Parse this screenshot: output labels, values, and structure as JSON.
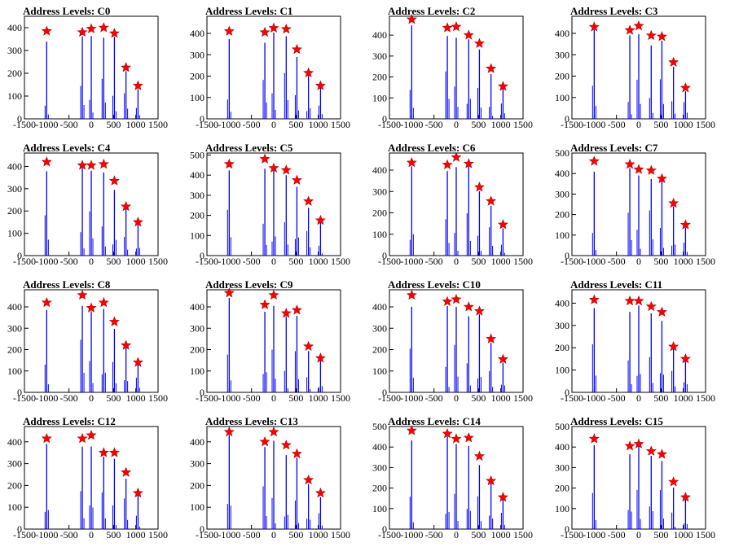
{
  "chart_data": [
    {
      "type": "bar",
      "title": "Address Levels: C0",
      "xlim": [
        -1500,
        1500
      ],
      "ylim": [
        0,
        450
      ],
      "yticks": [
        0,
        100,
        200,
        300,
        400
      ],
      "xticks": [
        -1500,
        -1000,
        -500,
        0,
        500,
        1000,
        1500
      ],
      "tick_labels_x": [
        "-1500",
        "-1000",
        "-500",
        "0",
        "500",
        "1000",
        "1500"
      ],
      "tick_labels_y": [
        "0",
        "100",
        "200",
        "300",
        "400"
      ],
      "peaks": [
        {
          "x": -1000,
          "y": 385
        },
        {
          "x": -200,
          "y": 380
        },
        {
          "x": 0,
          "y": 395
        },
        {
          "x": 280,
          "y": 400
        },
        {
          "x": 520,
          "y": 375
        },
        {
          "x": 780,
          "y": 225
        },
        {
          "x": 1050,
          "y": 145
        }
      ]
    },
    {
      "type": "bar",
      "title": "Address Levels: C1",
      "xlim": [
        -1500,
        1500
      ],
      "ylim": [
        0,
        480
      ],
      "yticks": [
        0,
        100,
        200,
        300,
        400
      ],
      "xticks": [
        -1500,
        -1000,
        -500,
        0,
        500,
        1000,
        1500
      ],
      "tick_labels_x": [
        "-1500",
        "-1000",
        "-500",
        "0",
        "500",
        "1000",
        "1500"
      ],
      "tick_labels_y": [
        "0",
        "100",
        "200",
        "300",
        "400"
      ],
      "peaks": [
        {
          "x": -1000,
          "y": 410
        },
        {
          "x": -200,
          "y": 405
        },
        {
          "x": 0,
          "y": 425
        },
        {
          "x": 280,
          "y": 420
        },
        {
          "x": 520,
          "y": 325
        },
        {
          "x": 780,
          "y": 215
        },
        {
          "x": 1050,
          "y": 155
        }
      ]
    },
    {
      "type": "bar",
      "title": "Address Levels: C2",
      "xlim": [
        -1500,
        1500
      ],
      "ylim": [
        0,
        490
      ],
      "yticks": [
        0,
        100,
        200,
        300,
        400
      ],
      "xticks": [
        -1500,
        -1000,
        -500,
        0,
        500,
        1000,
        1500
      ],
      "tick_labels_x": [
        "-1500",
        "-1000",
        "-500",
        "0",
        "500",
        "1000",
        "1500"
      ],
      "tick_labels_y": [
        "0",
        "100",
        "200",
        "300",
        "400"
      ],
      "peaks": [
        {
          "x": -1000,
          "y": 475
        },
        {
          "x": -200,
          "y": 435
        },
        {
          "x": 0,
          "y": 440
        },
        {
          "x": 280,
          "y": 400
        },
        {
          "x": 520,
          "y": 360
        },
        {
          "x": 780,
          "y": 240
        },
        {
          "x": 1050,
          "y": 155
        }
      ]
    },
    {
      "type": "bar",
      "title": "Address Levels: C3",
      "xlim": [
        -1500,
        1500
      ],
      "ylim": [
        0,
        480
      ],
      "yticks": [
        0,
        100,
        200,
        300,
        400
      ],
      "xticks": [
        -1500,
        -1000,
        -500,
        0,
        500,
        1000,
        1500
      ],
      "tick_labels_x": [
        "-1500",
        "-1000",
        "-500",
        "0",
        "500",
        "1000",
        "1500"
      ],
      "tick_labels_y": [
        "0",
        "100",
        "200",
        "300",
        "400"
      ],
      "peaks": [
        {
          "x": -1000,
          "y": 430
        },
        {
          "x": -200,
          "y": 415
        },
        {
          "x": 0,
          "y": 435
        },
        {
          "x": 280,
          "y": 390
        },
        {
          "x": 520,
          "y": 385
        },
        {
          "x": 780,
          "y": 265
        },
        {
          "x": 1050,
          "y": 145
        }
      ]
    },
    {
      "type": "bar",
      "title": "Address Levels: C4",
      "xlim": [
        -1500,
        1500
      ],
      "ylim": [
        0,
        460
      ],
      "yticks": [
        0,
        100,
        200,
        300,
        400
      ],
      "xticks": [
        -1500,
        -1000,
        -500,
        0,
        500,
        1000,
        1500
      ],
      "tick_labels_x": [
        "-1500",
        "-1000",
        "-500",
        "0",
        "500",
        "1000",
        "1500"
      ],
      "tick_labels_y": [
        "0",
        "100",
        "200",
        "300",
        "400"
      ],
      "peaks": [
        {
          "x": -1000,
          "y": 420
        },
        {
          "x": -200,
          "y": 405
        },
        {
          "x": 0,
          "y": 405
        },
        {
          "x": 280,
          "y": 410
        },
        {
          "x": 520,
          "y": 335
        },
        {
          "x": 780,
          "y": 220
        },
        {
          "x": 1050,
          "y": 150
        }
      ]
    },
    {
      "type": "bar",
      "title": "Address Levels: C5",
      "xlim": [
        -1500,
        1500
      ],
      "ylim": [
        0,
        510
      ],
      "yticks": [
        0,
        100,
        200,
        300,
        400,
        500
      ],
      "xticks": [
        -1500,
        -1000,
        -500,
        0,
        500,
        1000,
        1500
      ],
      "tick_labels_x": [
        "-1500",
        "-1000",
        "-500",
        "0",
        "500",
        "1000",
        "1500"
      ],
      "tick_labels_y": [
        "0",
        "100",
        "200",
        "300",
        "400",
        "500"
      ],
      "peaks": [
        {
          "x": -1000,
          "y": 455
        },
        {
          "x": -200,
          "y": 480
        },
        {
          "x": 0,
          "y": 435
        },
        {
          "x": 280,
          "y": 425
        },
        {
          "x": 520,
          "y": 375
        },
        {
          "x": 780,
          "y": 270
        },
        {
          "x": 1050,
          "y": 175
        }
      ]
    },
    {
      "type": "bar",
      "title": "Address Levels: C6",
      "xlim": [
        -1500,
        1500
      ],
      "ylim": [
        0,
        480
      ],
      "yticks": [
        0,
        100,
        200,
        300,
        400
      ],
      "xticks": [
        -1500,
        -1000,
        -500,
        0,
        500,
        1000,
        1500
      ],
      "tick_labels_x": [
        "-1500",
        "-1000",
        "-500",
        "0",
        "500",
        "1000",
        "1500"
      ],
      "tick_labels_y": [
        "0",
        "100",
        "200",
        "300",
        "400"
      ],
      "peaks": [
        {
          "x": -1000,
          "y": 435
        },
        {
          "x": -200,
          "y": 425
        },
        {
          "x": 0,
          "y": 460
        },
        {
          "x": 280,
          "y": 430
        },
        {
          "x": 520,
          "y": 320
        },
        {
          "x": 780,
          "y": 255
        },
        {
          "x": 1050,
          "y": 145
        }
      ]
    },
    {
      "type": "bar",
      "title": "Address Levels: C7",
      "xlim": [
        -1500,
        1500
      ],
      "ylim": [
        0,
        500
      ],
      "yticks": [
        0,
        100,
        200,
        300,
        400,
        500
      ],
      "xticks": [
        -1500,
        -1000,
        -500,
        0,
        500,
        1000,
        1500
      ],
      "tick_labels_x": [
        "-1500",
        "-1000",
        "-500",
        "0",
        "500",
        "1000",
        "1500"
      ],
      "tick_labels_y": [
        "0",
        "100",
        "200",
        "300",
        "400",
        "500"
      ],
      "peaks": [
        {
          "x": -1000,
          "y": 460
        },
        {
          "x": -200,
          "y": 445
        },
        {
          "x": 0,
          "y": 420
        },
        {
          "x": 280,
          "y": 415
        },
        {
          "x": 520,
          "y": 375
        },
        {
          "x": 780,
          "y": 255
        },
        {
          "x": 1050,
          "y": 150
        }
      ]
    },
    {
      "type": "bar",
      "title": "Address Levels: C8",
      "xlim": [
        -1500,
        1500
      ],
      "ylim": [
        0,
        480
      ],
      "yticks": [
        0,
        100,
        200,
        300,
        400
      ],
      "xticks": [
        -1500,
        -1000,
        -500,
        0,
        500,
        1000,
        1500
      ],
      "tick_labels_x": [
        "-1500",
        "-1000",
        "-500",
        "0",
        "500",
        "1000",
        "1500"
      ],
      "tick_labels_y": [
        "0",
        "100",
        "200",
        "300",
        "400"
      ],
      "peaks": [
        {
          "x": -1000,
          "y": 420
        },
        {
          "x": -200,
          "y": 455
        },
        {
          "x": 0,
          "y": 395
        },
        {
          "x": 280,
          "y": 420
        },
        {
          "x": 520,
          "y": 330
        },
        {
          "x": 780,
          "y": 220
        },
        {
          "x": 1050,
          "y": 140
        }
      ]
    },
    {
      "type": "bar",
      "title": "Address Levels: C9",
      "xlim": [
        -1500,
        1500
      ],
      "ylim": [
        0,
        480
      ],
      "yticks": [
        0,
        100,
        200,
        300,
        400
      ],
      "xticks": [
        -1500,
        -1000,
        -500,
        0,
        500,
        1000,
        1500
      ],
      "tick_labels_x": [
        "-1500",
        "-1000",
        "-500",
        "0",
        "500",
        "1000",
        "1500"
      ],
      "tick_labels_y": [
        "0",
        "100",
        "200",
        "300",
        "400"
      ],
      "peaks": [
        {
          "x": -1000,
          "y": 465
        },
        {
          "x": -200,
          "y": 410
        },
        {
          "x": 0,
          "y": 455
        },
        {
          "x": 280,
          "y": 370
        },
        {
          "x": 520,
          "y": 385
        },
        {
          "x": 780,
          "y": 215
        },
        {
          "x": 1050,
          "y": 160
        }
      ]
    },
    {
      "type": "bar",
      "title": "Address Levels: C10",
      "xlim": [
        -1500,
        1500
      ],
      "ylim": [
        0,
        480
      ],
      "yticks": [
        0,
        100,
        200,
        300,
        400
      ],
      "xticks": [
        -1500,
        -1000,
        -500,
        0,
        500,
        1000,
        1500
      ],
      "tick_labels_x": [
        "-1500",
        "-1000",
        "-500",
        "0",
        "500",
        "1000",
        "1500"
      ],
      "tick_labels_y": [
        "0",
        "100",
        "200",
        "300",
        "400"
      ],
      "peaks": [
        {
          "x": -1000,
          "y": 455
        },
        {
          "x": -200,
          "y": 425
        },
        {
          "x": 0,
          "y": 435
        },
        {
          "x": 280,
          "y": 400
        },
        {
          "x": 520,
          "y": 380
        },
        {
          "x": 780,
          "y": 250
        },
        {
          "x": 1050,
          "y": 155
        }
      ]
    },
    {
      "type": "bar",
      "title": "Address Levels: C11",
      "xlim": [
        -1500,
        1500
      ],
      "ylim": [
        0,
        460
      ],
      "yticks": [
        0,
        100,
        200,
        300,
        400
      ],
      "xticks": [
        -1500,
        -1000,
        -500,
        0,
        500,
        1000,
        1500
      ],
      "tick_labels_x": [
        "-1500",
        "-1000",
        "-500",
        "0",
        "500",
        "1000",
        "1500"
      ],
      "tick_labels_y": [
        "0",
        "100",
        "200",
        "300",
        "400"
      ],
      "peaks": [
        {
          "x": -1000,
          "y": 415
        },
        {
          "x": -200,
          "y": 410
        },
        {
          "x": 0,
          "y": 410
        },
        {
          "x": 280,
          "y": 385
        },
        {
          "x": 520,
          "y": 360
        },
        {
          "x": 780,
          "y": 205
        },
        {
          "x": 1050,
          "y": 150
        }
      ]
    },
    {
      "type": "bar",
      "title": "Address Levels: C12",
      "xlim": [
        -1500,
        1500
      ],
      "ylim": [
        0,
        470
      ],
      "yticks": [
        0,
        100,
        200,
        300,
        400
      ],
      "xticks": [
        -1500,
        -1000,
        -500,
        0,
        500,
        1000,
        1500
      ],
      "tick_labels_x": [
        "-1500",
        "-1000",
        "-500",
        "0",
        "500",
        "1000",
        "1500"
      ],
      "tick_labels_y": [
        "0",
        "100",
        "200",
        "300",
        "400"
      ],
      "peaks": [
        {
          "x": -1000,
          "y": 415
        },
        {
          "x": -200,
          "y": 415
        },
        {
          "x": 0,
          "y": 430
        },
        {
          "x": 280,
          "y": 350
        },
        {
          "x": 520,
          "y": 350
        },
        {
          "x": 780,
          "y": 260
        },
        {
          "x": 1050,
          "y": 165
        }
      ]
    },
    {
      "type": "bar",
      "title": "Address Levels: C13",
      "xlim": [
        -1500,
        1500
      ],
      "ylim": [
        0,
        470
      ],
      "yticks": [
        0,
        100,
        200,
        300,
        400
      ],
      "xticks": [
        -1500,
        -1000,
        -500,
        0,
        500,
        1000,
        1500
      ],
      "tick_labels_x": [
        "-1500",
        "-1000",
        "-500",
        "0",
        "500",
        "1000",
        "1500"
      ],
      "tick_labels_y": [
        "0",
        "100",
        "200",
        "300",
        "400"
      ],
      "peaks": [
        {
          "x": -1000,
          "y": 445
        },
        {
          "x": -200,
          "y": 400
        },
        {
          "x": 0,
          "y": 445
        },
        {
          "x": 280,
          "y": 385
        },
        {
          "x": 520,
          "y": 345
        },
        {
          "x": 780,
          "y": 225
        },
        {
          "x": 1050,
          "y": 165
        }
      ]
    },
    {
      "type": "bar",
      "title": "Address Levels: C14",
      "xlim": [
        -1500,
        1500
      ],
      "ylim": [
        0,
        500
      ],
      "yticks": [
        0,
        100,
        200,
        300,
        400,
        500
      ],
      "xticks": [
        -1500,
        -1000,
        -500,
        0,
        500,
        1000,
        1500
      ],
      "tick_labels_x": [
        "-1500",
        "-1000",
        "-500",
        "0",
        "500",
        "1000",
        "1500"
      ],
      "tick_labels_y": [
        "0",
        "100",
        "200",
        "300",
        "400",
        "500"
      ],
      "peaks": [
        {
          "x": -1000,
          "y": 480
        },
        {
          "x": -200,
          "y": 465
        },
        {
          "x": 0,
          "y": 440
        },
        {
          "x": 280,
          "y": 445
        },
        {
          "x": 520,
          "y": 355
        },
        {
          "x": 780,
          "y": 235
        },
        {
          "x": 1050,
          "y": 155
        }
      ]
    },
    {
      "type": "bar",
      "title": "Address Levels: C15",
      "xlim": [
        -1500,
        1500
      ],
      "ylim": [
        0,
        500
      ],
      "yticks": [
        0,
        100,
        200,
        300,
        400,
        500
      ],
      "xticks": [
        -1500,
        -1000,
        -500,
        0,
        500,
        1000,
        1500
      ],
      "tick_labels_x": [
        "-1500",
        "-1000",
        "-500",
        "0",
        "500",
        "1000",
        "1500"
      ],
      "tick_labels_y": [
        "0",
        "100",
        "200",
        "300",
        "400",
        "500"
      ],
      "peaks": [
        {
          "x": -1000,
          "y": 440
        },
        {
          "x": -200,
          "y": 405
        },
        {
          "x": 0,
          "y": 415
        },
        {
          "x": 280,
          "y": 380
        },
        {
          "x": 520,
          "y": 365
        },
        {
          "x": 780,
          "y": 230
        },
        {
          "x": 1050,
          "y": 155
        }
      ]
    }
  ],
  "colors": {
    "bar": "#0000ff",
    "marker": "#ff0000",
    "axis": "#000000"
  },
  "marker_shape": "star-icon"
}
